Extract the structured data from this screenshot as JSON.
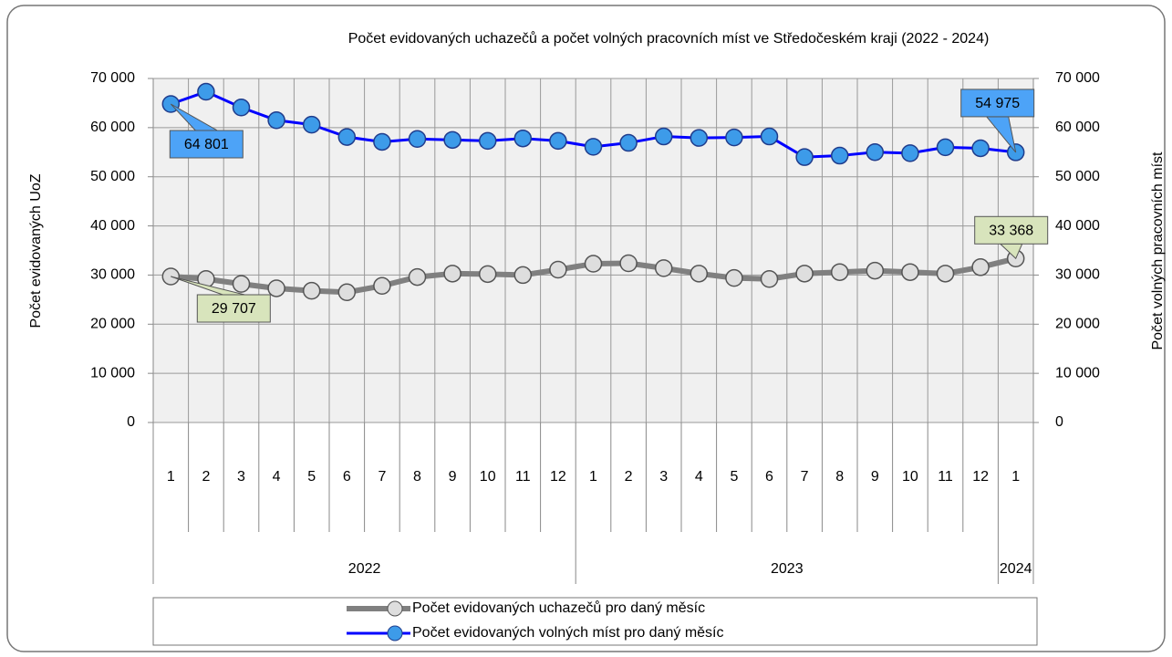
{
  "chart_data": {
    "type": "line",
    "title": "Počet evidovaných uchazečů a počet volných pracovních míst ve Středočeském kraji (2022 - 2024)",
    "y_label": "Počet evidovaných UoZ",
    "y2_label": "Počet volných pracovních míst",
    "categories": [
      "1",
      "2",
      "3",
      "4",
      "5",
      "6",
      "7",
      "8",
      "9",
      "10",
      "11",
      "12",
      "1",
      "2",
      "3",
      "4",
      "5",
      "6",
      "7",
      "8",
      "9",
      "10",
      "11",
      "12",
      "1"
    ],
    "category_groups": [
      "2022",
      "2023",
      "2024"
    ],
    "series": [
      {
        "name": "Počet evidovaných uchazečů pro daný měsíc",
        "color": "#808080",
        "marker_color": "#dedede",
        "axis": "y",
        "values": [
          29707,
          29200,
          28200,
          27300,
          26800,
          26500,
          27800,
          29600,
          30300,
          30200,
          30000,
          31100,
          32300,
          32400,
          31400,
          30300,
          29400,
          29200,
          30300,
          30600,
          30900,
          30600,
          30300,
          31600,
          33368
        ],
        "value_labels": [
          "29 707",
          null,
          null,
          null,
          null,
          null,
          null,
          null,
          null,
          null,
          null,
          null,
          null,
          null,
          null,
          null,
          null,
          null,
          null,
          null,
          null,
          null,
          null,
          null,
          "33 368"
        ],
        "label_color": "#d8e4bc"
      },
      {
        "name": "Počet evidovaných volných míst pro daný měsíc",
        "color": "#0000ff",
        "marker_color": "#3d9be9",
        "axis": "y2",
        "values": [
          64801,
          67300,
          64100,
          61500,
          60600,
          58100,
          57100,
          57700,
          57500,
          57300,
          57800,
          57300,
          56100,
          56900,
          58200,
          57900,
          58000,
          58200,
          54000,
          54300,
          55000,
          54800,
          56000,
          55800,
          54975
        ],
        "value_labels": [
          "64 801",
          null,
          null,
          null,
          null,
          null,
          null,
          null,
          null,
          null,
          null,
          null,
          null,
          null,
          null,
          null,
          null,
          null,
          null,
          null,
          null,
          null,
          null,
          null,
          "54 975"
        ],
        "label_color": "#4da3f7"
      }
    ],
    "ylim": [
      0,
      70000
    ],
    "yticks": [
      {
        "value": 0,
        "label": "0"
      },
      {
        "value": 10000,
        "label": "10 000"
      },
      {
        "value": 20000,
        "label": "20 000"
      },
      {
        "value": 30000,
        "label": "30 000"
      },
      {
        "value": 40000,
        "label": "40 000"
      },
      {
        "value": 50000,
        "label": "50 000"
      },
      {
        "value": 60000,
        "label": "60 000"
      },
      {
        "value": 70000,
        "label": "70 000"
      }
    ],
    "y2lim": [
      0,
      70000
    ],
    "y2ticks": [
      {
        "value": 0,
        "label": "0"
      },
      {
        "value": 10000,
        "label": "10 000"
      },
      {
        "value": 20000,
        "label": "20 000"
      },
      {
        "value": 30000,
        "label": "30 000"
      },
      {
        "value": 40000,
        "label": "40 000"
      },
      {
        "value": 50000,
        "label": "50 000"
      },
      {
        "value": 60000,
        "label": "60 000"
      },
      {
        "value": 70000,
        "label": "70 000"
      }
    ],
    "grid": true,
    "legend": "bottom"
  }
}
